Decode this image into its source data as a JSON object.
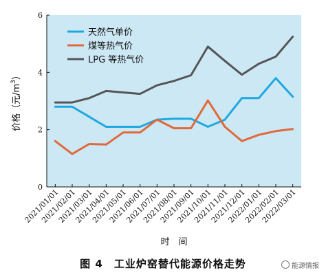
{
  "chart_data": {
    "type": "line",
    "ylabel": "价格（元/m³）",
    "ylabel_main": "价格（元/m",
    "ylabel_sup": "3",
    "ylabel_close": "）",
    "xlabel": "时　间",
    "ylim": [
      0,
      6
    ],
    "yticks": [
      0,
      2,
      4,
      6
    ],
    "grid": false,
    "legend_position": "top-left",
    "background_color": "#cde8f5",
    "categories": [
      "2021/01/01",
      "2021/02/01",
      "2021/03/01",
      "2021/04/01",
      "2021/05/01",
      "2021/06/01",
      "2021/07/01",
      "2021/08/01",
      "2021/09/01",
      "2021/10/01",
      "2021/11/01",
      "2021/12/01",
      "2022/01/01",
      "2022/02/01",
      "2022/03/01"
    ],
    "series": [
      {
        "name": "天然气单价",
        "color": "#1ea8e0",
        "x": [
          "2021/01/01",
          "2021/02/01",
          "2021/03/01",
          "2021/04/01",
          "2021/05/01",
          "2021/06/01",
          "2021/07/01",
          "2021/08/01",
          "2021/09/01",
          "2021/10/01",
          "2021/11/01",
          "2021/12/01",
          "2021/12/15",
          "2022/01/01",
          "2022/02/01",
          "2022/03/01"
        ],
        "values": [
          2.8,
          2.8,
          2.45,
          2.1,
          2.1,
          2.1,
          2.35,
          2.38,
          2.38,
          2.1,
          2.35,
          3.1,
          3.1,
          3.1,
          3.8,
          3.15
        ]
      },
      {
        "name": "煤等热气价",
        "color": "#e0693a",
        "x": [
          "2021/01/01",
          "2021/02/01",
          "2021/03/01",
          "2021/04/01",
          "2021/05/01",
          "2021/06/01",
          "2021/07/01",
          "2021/08/01",
          "2021/09/01",
          "2021/10/01",
          "2021/11/01",
          "2021/12/01",
          "2022/01/01",
          "2022/02/01",
          "2022/03/01"
        ],
        "values": [
          1.6,
          1.15,
          1.5,
          1.48,
          1.9,
          1.9,
          2.35,
          2.05,
          2.05,
          3.02,
          2.1,
          1.6,
          1.82,
          1.95,
          2.02
        ]
      },
      {
        "name": "LPG 等热气价",
        "color": "#555555",
        "x": [
          "2021/01/01",
          "2021/02/01",
          "2021/03/01",
          "2021/04/01",
          "2021/05/01",
          "2021/06/01",
          "2021/07/01",
          "2021/08/01",
          "2021/09/01",
          "2021/10/01",
          "2021/11/01",
          "2021/12/01",
          "2022/01/01",
          "2022/02/01",
          "2022/03/01"
        ],
        "values": [
          2.95,
          2.95,
          3.1,
          3.35,
          3.3,
          3.25,
          3.55,
          3.7,
          3.9,
          4.9,
          4.4,
          3.92,
          4.3,
          4.55,
          5.25
        ]
      }
    ]
  },
  "caption": "图 4　工业炉窑替代能源价格走势",
  "watermark": "能源情报"
}
